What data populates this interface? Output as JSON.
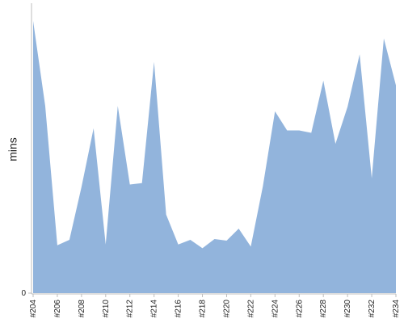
{
  "chart_data": {
    "type": "area",
    "ylabel": "mins",
    "x": [
      "#204",
      "#205",
      "#206",
      "#207",
      "#208",
      "#209",
      "#210",
      "#211",
      "#212",
      "#213",
      "#214",
      "#215",
      "#216",
      "#217",
      "#218",
      "#219",
      "#220",
      "#221",
      "#222",
      "#223",
      "#224",
      "#225",
      "#226",
      "#227",
      "#228",
      "#229",
      "#230",
      "#231",
      "#232",
      "#233",
      "#234"
    ],
    "x_tick_labels": [
      "#204",
      "#206",
      "#208",
      "#210",
      "#212",
      "#214",
      "#216",
      "#218",
      "#220",
      "#222",
      "#224",
      "#226",
      "#228",
      "#230",
      "#232",
      "#234"
    ],
    "y_ticks": [
      0
    ],
    "series": [
      {
        "values": [
          101.2,
          69.6,
          17.8,
          19.8,
          39.5,
          61.3,
          18.1,
          69.6,
          40.4,
          40.9,
          86.0,
          29.2,
          18.1,
          19.8,
          16.7,
          20.1,
          19.5,
          24.0,
          17.3,
          39.8,
          67.6,
          60.5,
          60.5,
          59.6,
          79.0,
          55.5,
          69.3,
          88.8,
          42.7,
          94.7,
          77.3
        ]
      }
    ],
    "ylim": [
      0,
      106
    ],
    "colors": {
      "area": "#92b4dc",
      "axis": "#bdbdbd",
      "text": "#222222"
    }
  }
}
